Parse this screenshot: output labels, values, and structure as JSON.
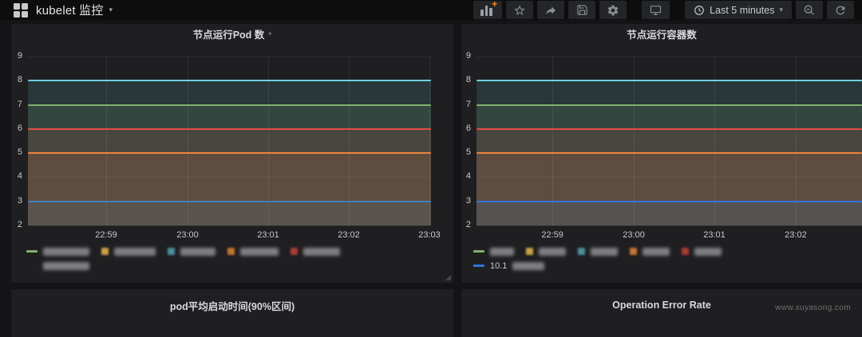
{
  "navbar": {
    "title": "kubelet 监控",
    "time_range_label": "Last 5 minutes",
    "buttons": {
      "add_panel": "Add panel",
      "star": "Mark as favorite",
      "share": "Share dashboard",
      "save": "Save dashboard",
      "settings": "Dashboard settings",
      "cycle_view": "Cycle view mode",
      "zoom_out": "Zoom out time range",
      "refresh": "Refresh dashboard"
    }
  },
  "colors": {
    "accent_orange_plus": "#ff8b1f",
    "panel_bg": "#1f1f22",
    "page_bg": "#141416",
    "navbar_bg": "#0d0d0e"
  },
  "panels": {
    "pods": {
      "title": "节点运行Pod 数"
    },
    "containers": {
      "title": "节点运行容器数"
    },
    "startup": {
      "title": "pod平均启动时间(90%区间)"
    },
    "error_rate": {
      "title": "Operation Error Rate"
    }
  },
  "watermark": "www.xuyasong.com",
  "chart_data": [
    {
      "type": "line",
      "title": "节点运行Pod 数",
      "x": [
        "22:59",
        "23:00",
        "23:01",
        "23:02",
        "23:03"
      ],
      "xgrid_pct": [
        19.4,
        39.6,
        59.6,
        79.6,
        99.6
      ],
      "yticks": [
        9,
        8,
        7,
        6,
        5,
        4,
        3,
        2
      ],
      "ylim": [
        2,
        9
      ],
      "grid": true,
      "legend_position": "bottom",
      "fill_opacity": 0.13,
      "series": [
        {
          "name": "",
          "name_redacted": true,
          "color": "#6ED0E0",
          "values": [
            8,
            8,
            8,
            8,
            8
          ]
        },
        {
          "name": "",
          "name_redacted": true,
          "color": "#7EB26D",
          "values": [
            7,
            7,
            7,
            7,
            7
          ]
        },
        {
          "name": "",
          "name_redacted": true,
          "color": "#E24D42",
          "values": [
            6,
            6,
            6,
            6,
            6
          ]
        },
        {
          "name": "",
          "name_redacted": true,
          "color": "#EF843C",
          "values": [
            5,
            5,
            5,
            5,
            5
          ]
        },
        {
          "name": "",
          "name_redacted": true,
          "color": "#447EBC",
          "values": [
            3,
            3,
            3,
            3,
            3
          ]
        }
      ],
      "legend": {
        "rows": [
          [
            {
              "marker": "dash",
              "color": "#7EB26D",
              "blur_w": 58
            },
            {
              "marker": "square",
              "color": "#caa243",
              "blur_w": 52
            },
            {
              "marker": "square",
              "color": "#47919f",
              "blur_w": 44
            },
            {
              "marker": "square",
              "color": "#c4752f",
              "blur_w": 48
            },
            {
              "marker": "square",
              "color": "#a83c34",
              "blur_w": 46
            }
          ],
          [
            {
              "marker": "none",
              "blur_w": 58
            }
          ]
        ]
      }
    },
    {
      "type": "line",
      "title": "节点运行容器数",
      "x": [
        "22:59",
        "23:00",
        "23:01",
        "23:02"
      ],
      "xgrid_pct": [
        19.7,
        40.8,
        61.7,
        82.8
      ],
      "yticks": [
        9,
        8,
        7,
        6,
        5,
        4,
        3,
        2
      ],
      "ylim": [
        2,
        9
      ],
      "grid": true,
      "legend_position": "bottom",
      "fill_opacity": 0.13,
      "series": [
        {
          "name": "",
          "name_redacted": true,
          "color": "#6ED0E0",
          "values": [
            8,
            8,
            8,
            8
          ]
        },
        {
          "name": "",
          "name_redacted": true,
          "color": "#7EB26D",
          "values": [
            7,
            7,
            7,
            7
          ]
        },
        {
          "name": "",
          "name_redacted": true,
          "color": "#E24D42",
          "values": [
            6,
            6,
            6,
            6
          ]
        },
        {
          "name": "",
          "name_redacted": true,
          "color": "#EF843C",
          "values": [
            5,
            5,
            5,
            5
          ]
        },
        {
          "name": "10.1",
          "name_redacted": true,
          "color": "#3274D9",
          "values": [
            3,
            3,
            3,
            3
          ]
        }
      ],
      "legend": {
        "rows": [
          [
            {
              "marker": "dash",
              "color": "#7EB26D",
              "blur_w": 30
            },
            {
              "marker": "square",
              "color": "#caa243",
              "blur_w": 34
            },
            {
              "marker": "square",
              "color": "#47919f",
              "blur_w": 34
            },
            {
              "marker": "square",
              "color": "#c4752f",
              "blur_w": 34
            },
            {
              "marker": "square",
              "color": "#a83c34",
              "blur_w": 34
            }
          ],
          [
            {
              "marker": "dash",
              "color": "#3274D9",
              "label": "10.1",
              "blur_w": 40
            }
          ]
        ]
      }
    }
  ]
}
